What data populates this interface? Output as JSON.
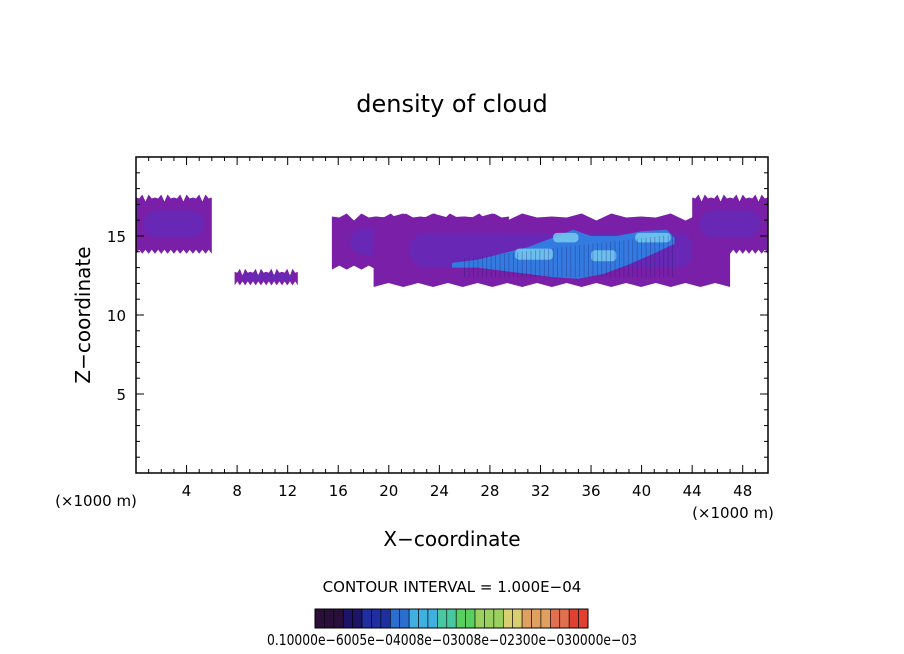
{
  "chart_data": {
    "type": "heatmap",
    "title": "density of cloud",
    "xlabel": "X−coordinate",
    "ylabel": "Z−coordinate",
    "x_unit": "(×1000 m)",
    "y_unit": "(×1000 m)",
    "xlim": [
      0,
      50
    ],
    "ylim": [
      0,
      20
    ],
    "x_ticks": [
      4,
      8,
      12,
      16,
      20,
      24,
      28,
      32,
      36,
      40,
      44,
      48
    ],
    "x_tick_labels": [
      "4",
      "8",
      "12",
      "16",
      "20",
      "24",
      "28",
      "32",
      "36",
      "40",
      "44",
      "48"
    ],
    "y_ticks": [
      5,
      10,
      15
    ],
    "y_tick_labels": [
      "5",
      "10",
      "15"
    ],
    "contour_interval_label": "CONTOUR INTERVAL = 1.000E−04",
    "colorbar": {
      "min": 0.0001,
      "max": 0.003,
      "labels_text": "0.10000e−6005e−04008e−03008e−02300e−030000e−03",
      "colors": [
        "#2a0f3a",
        "#1c1466",
        "#1f2fa0",
        "#2a6fd0",
        "#3fb0e0",
        "#48c8a0",
        "#58d060",
        "#9ad060",
        "#d8d070",
        "#e0a060",
        "#e07050",
        "#e04030"
      ]
    },
    "regions": [
      {
        "name": "left-edge-cloud",
        "x": [
          0,
          6
        ],
        "z": [
          14,
          17.5
        ],
        "max": 0.0003
      },
      {
        "name": "small-cloud-8-13",
        "x": [
          7.8,
          12.8
        ],
        "z": [
          12,
          12.8
        ],
        "max": 0.0003
      },
      {
        "name": "upper-band",
        "x": [
          15.5,
          29.5
        ],
        "z": [
          13,
          16.3
        ],
        "max": 0.0004
      },
      {
        "name": "main-cloud",
        "x": [
          18.8,
          47
        ],
        "z": [
          11.9,
          16.3
        ],
        "max": 0.0008
      },
      {
        "name": "right-edge-cloud",
        "x": [
          44,
          50
        ],
        "z": [
          14,
          17.5
        ],
        "max": 0.0003
      }
    ],
    "colors": {
      "low": "#7a1fa8",
      "mid": "#5a2fc0",
      "high": "#2a8ae8",
      "peak": "#7ad0f0"
    }
  }
}
